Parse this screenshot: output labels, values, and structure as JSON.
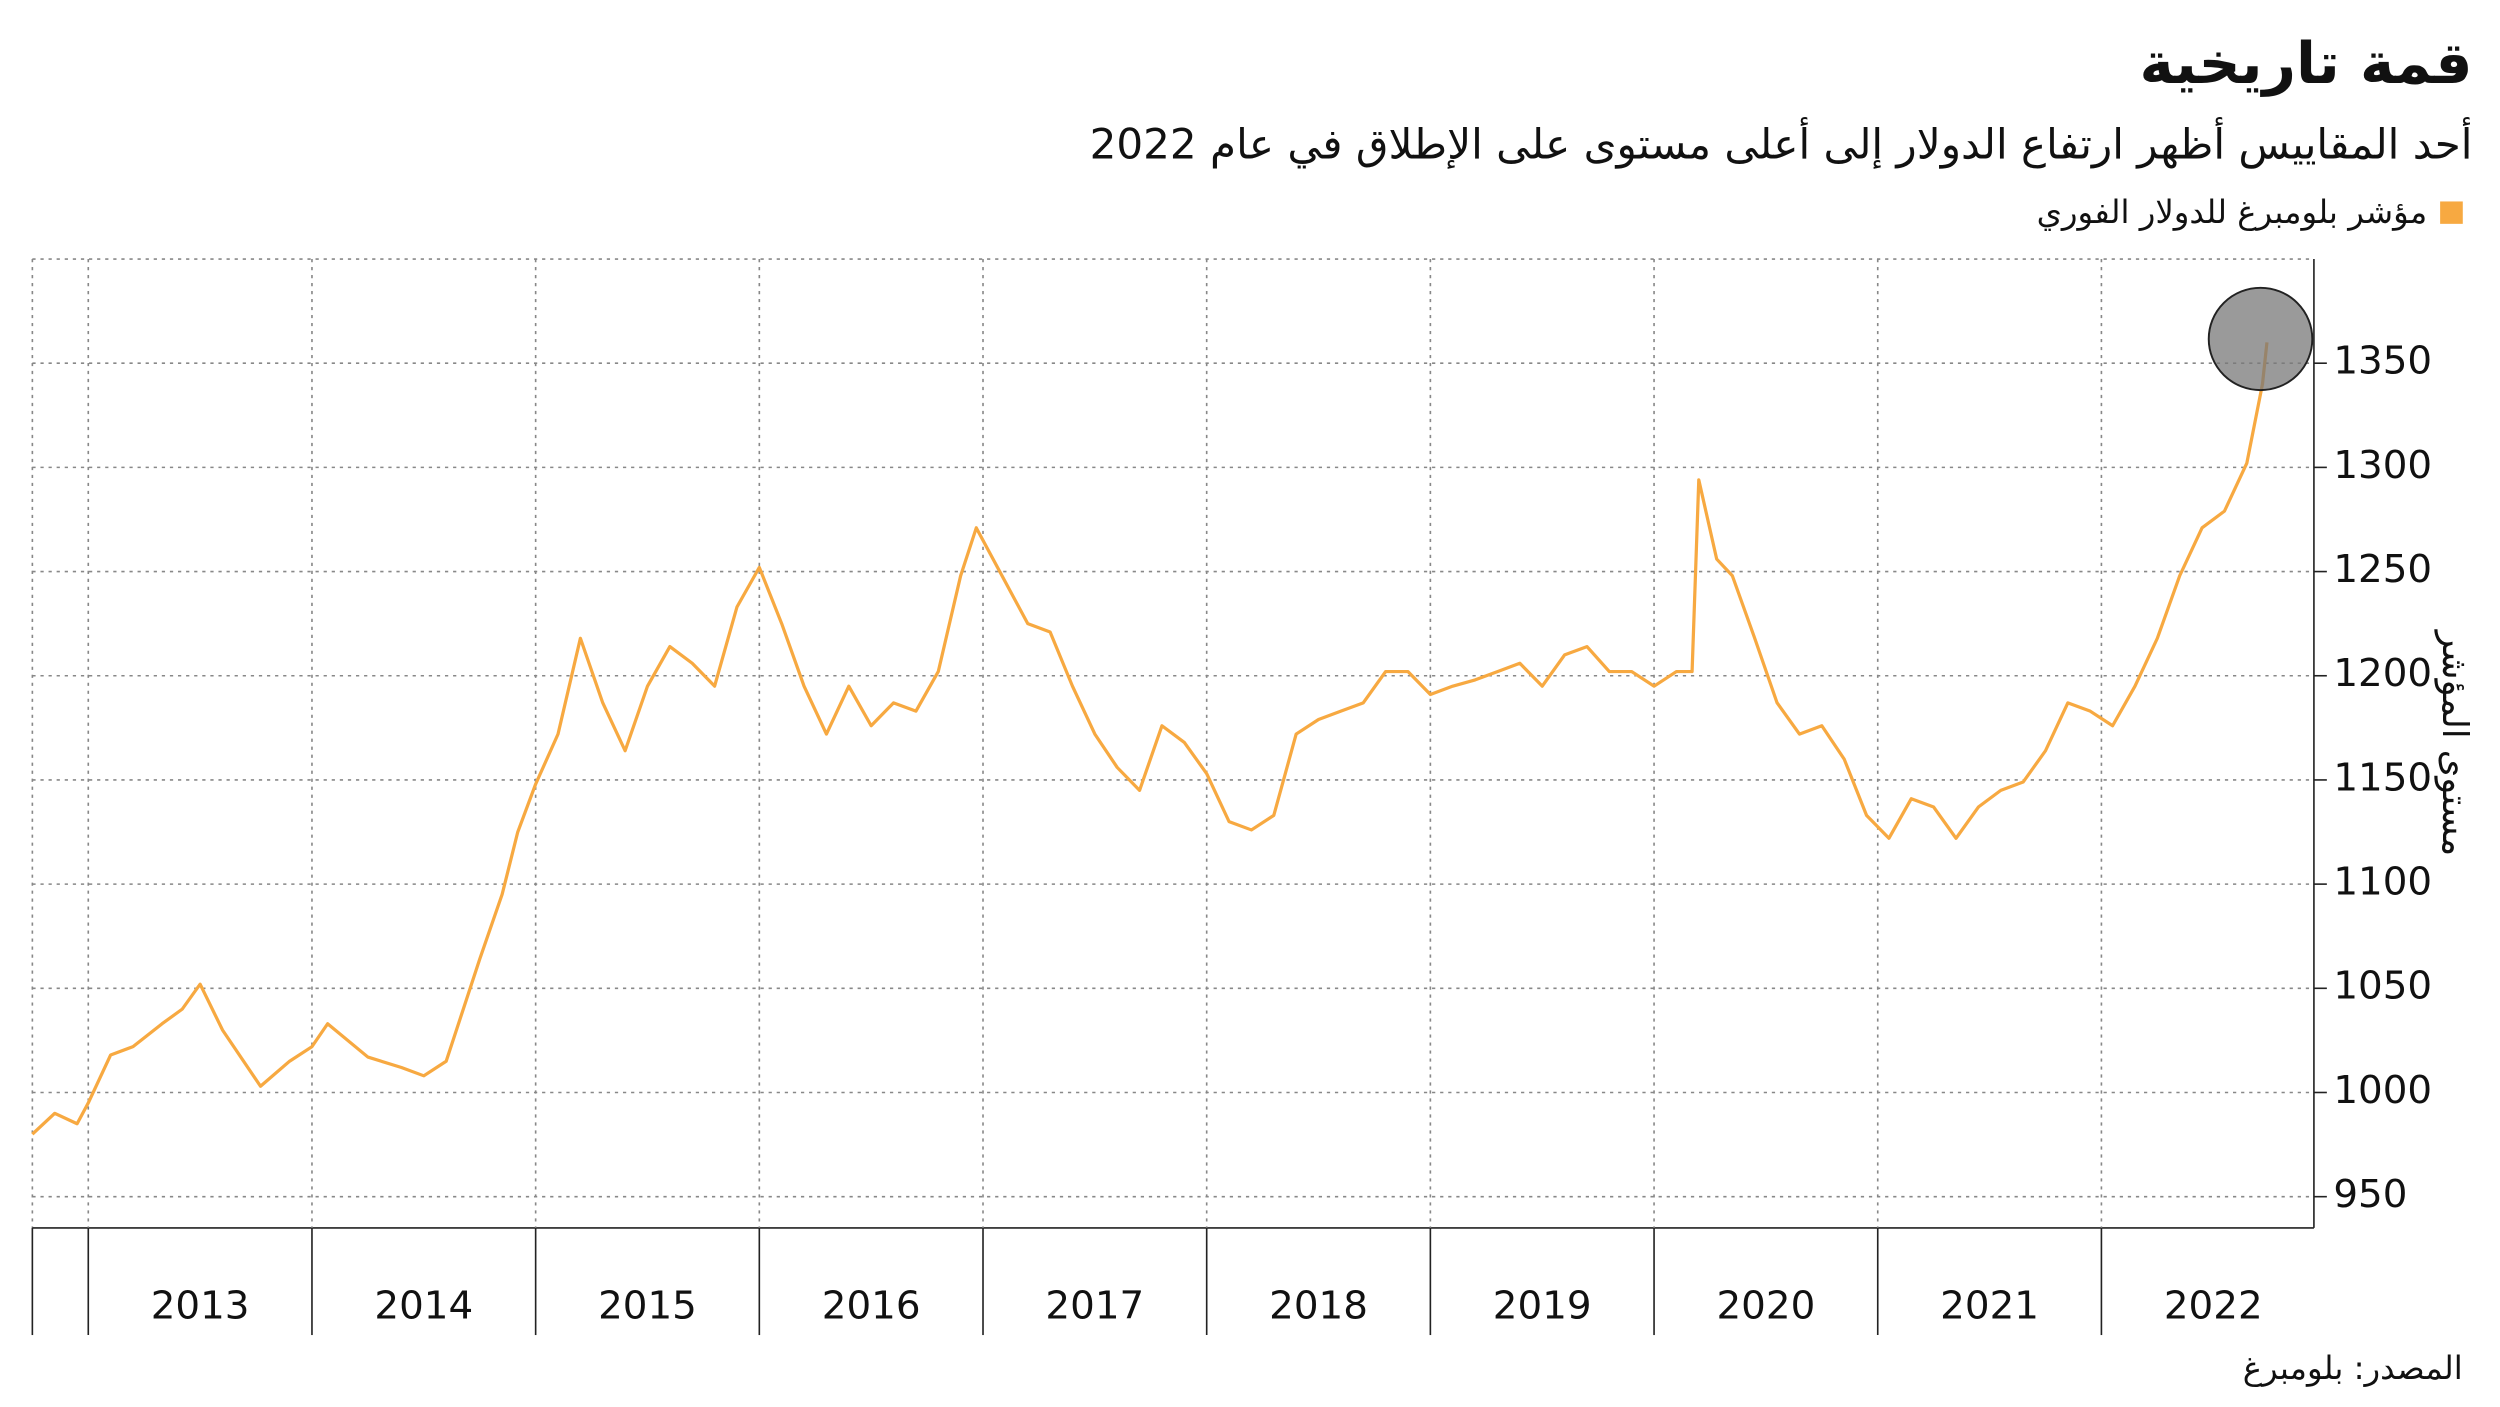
{
  "chart_data": {
    "type": "line",
    "title": "قمة تاريخية",
    "subtitle": "أحد المقاييس أظهر ارتفاع الدولار إلى أعلى مستوى على الإطلاق في عام 2022",
    "ylabel": "مستوى المؤشر",
    "source": "المصدر: بلومبرغ",
    "series": [
      {
        "name": "مؤشر بلومبرغ للدولار الفوري",
        "color": "#f7a941",
        "x": [
          2012.75,
          2012.85,
          2012.95,
          2013.0,
          2013.1,
          2013.2,
          2013.33,
          2013.42,
          2013.5,
          2013.6,
          2013.77,
          2013.9,
          2014.0,
          2014.07,
          2014.25,
          2014.4,
          2014.5,
          2014.6,
          2014.75,
          2014.85,
          2014.92,
          2015.0,
          2015.1,
          2015.2,
          2015.3,
          2015.4,
          2015.5,
          2015.6,
          2015.7,
          2015.8,
          2015.9,
          2016.0,
          2016.1,
          2016.2,
          2016.3,
          2016.4,
          2016.5,
          2016.6,
          2016.7,
          2016.8,
          2016.9,
          2016.97,
          2017.1,
          2017.2,
          2017.3,
          2017.4,
          2017.5,
          2017.6,
          2017.7,
          2017.8,
          2017.9,
          2018.0,
          2018.1,
          2018.2,
          2018.3,
          2018.4,
          2018.5,
          2018.6,
          2018.7,
          2018.8,
          2018.9,
          2019.0,
          2019.1,
          2019.2,
          2019.3,
          2019.4,
          2019.5,
          2019.6,
          2019.7,
          2019.8,
          2019.9,
          2020.0,
          2020.1,
          2020.17,
          2020.2,
          2020.28,
          2020.35,
          2020.45,
          2020.55,
          2020.65,
          2020.75,
          2020.85,
          2020.95,
          2021.05,
          2021.15,
          2021.25,
          2021.35,
          2021.45,
          2021.55,
          2021.65,
          2021.75,
          2021.85,
          2021.95,
          2022.05,
          2022.15,
          2022.25,
          2022.35,
          2022.45,
          2022.55,
          2022.65,
          2022.72,
          2022.74
        ],
        "values": [
          980,
          990,
          985,
          995,
          1018,
          1022,
          1033,
          1040,
          1052,
          1030,
          1003,
          1015,
          1022,
          1033,
          1017,
          1012,
          1008,
          1015,
          1064,
          1095,
          1125,
          1148,
          1172,
          1218,
          1187,
          1164,
          1195,
          1214,
          1206,
          1195,
          1233,
          1252,
          1225,
          1195,
          1172,
          1195,
          1176,
          1187,
          1183,
          1202,
          1248,
          1271,
          1245,
          1225,
          1221,
          1195,
          1172,
          1156,
          1145,
          1176,
          1168,
          1153,
          1130,
          1126,
          1133,
          1172,
          1179,
          1183,
          1187,
          1202,
          1202,
          1191,
          1195,
          1198,
          1202,
          1206,
          1195,
          1210,
          1214,
          1202,
          1202,
          1195,
          1202,
          1202,
          1294,
          1256,
          1248,
          1218,
          1187,
          1172,
          1176,
          1160,
          1133,
          1122,
          1141,
          1137,
          1122,
          1137,
          1145,
          1149,
          1164,
          1187,
          1183,
          1176,
          1195,
          1218,
          1248,
          1271,
          1279,
          1302,
          1340,
          1360
        ]
      }
    ],
    "xlim": [
      2012.75,
      2022.95
    ],
    "xticks": [
      2013,
      2014,
      2015,
      2016,
      2017,
      2018,
      2019,
      2020,
      2021,
      2022
    ],
    "year_labels": [
      2013,
      2014,
      2015,
      2016,
      2017,
      2018,
      2019,
      2020,
      2021,
      2022
    ],
    "ylim": [
      935,
      1400
    ],
    "yticks": [
      950,
      1000,
      1050,
      1100,
      1150,
      1200,
      1250,
      1300,
      1350
    ],
    "grid": true,
    "legend": "top-right"
  }
}
